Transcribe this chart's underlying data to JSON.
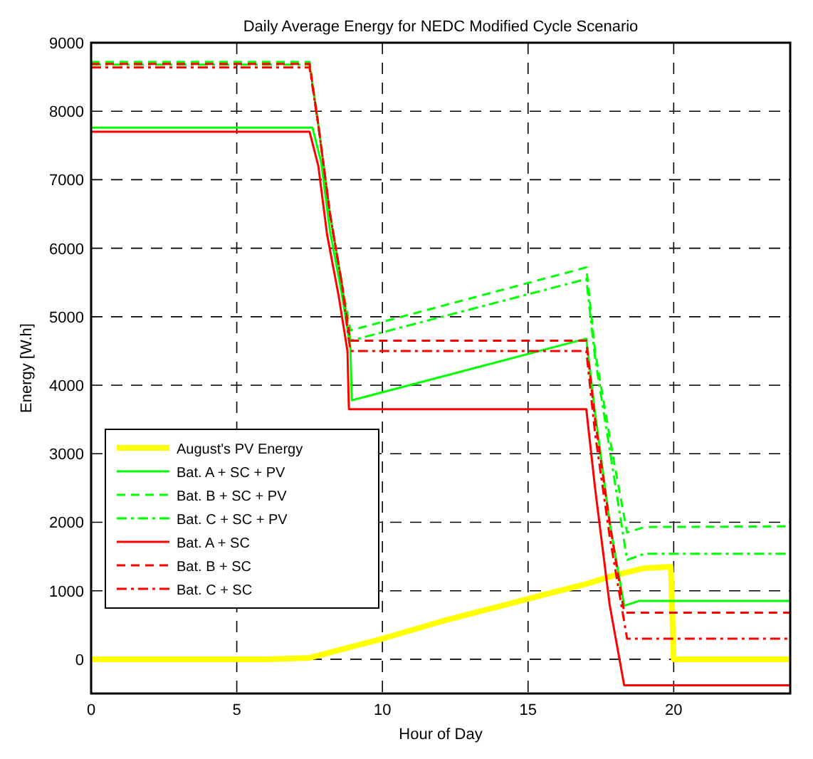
{
  "chart_data": {
    "type": "line",
    "title": "Daily Average Energy for NEDC Modified Cycle Scenario",
    "xlabel": "Hour of Day",
    "ylabel": "Energy [W.h]",
    "xlim": [
      0,
      24
    ],
    "ylim": [
      -500,
      9000
    ],
    "xticks": [
      0,
      5,
      10,
      15,
      20
    ],
    "yticks": [
      0,
      1000,
      2000,
      3000,
      4000,
      5000,
      6000,
      7000,
      8000,
      9000
    ],
    "grid": true,
    "legend": "bottom left",
    "series": [
      {
        "name": "August's PV Energy",
        "color": "#ffff00",
        "line_style": "solid",
        "x": [
          0,
          6,
          7.5,
          10,
          12,
          15,
          17,
          18,
          19,
          19.9,
          20,
          24
        ],
        "values": [
          0,
          0,
          20,
          300,
          550,
          880,
          1100,
          1230,
          1330,
          1350,
          0,
          0
        ]
      },
      {
        "name": "Bat. A + SC + PV",
        "color": "#00ff00",
        "line_style": "solid",
        "x": [
          0,
          7.6,
          7.9,
          8.2,
          8.6,
          8.9,
          8.95,
          17,
          17.3,
          17.8,
          18.3,
          18.8,
          24
        ],
        "values": [
          7760,
          7760,
          7250,
          6250,
          5350,
          4550,
          3780,
          4680,
          3600,
          2000,
          780,
          850,
          850
        ]
      },
      {
        "name": "Bat. B + SC + PV",
        "color": "#00ff00",
        "line_style": "dashed",
        "x": [
          0,
          7.5,
          7.8,
          8.2,
          8.6,
          8.9,
          17,
          17.3,
          17.9,
          18.4,
          19,
          24
        ],
        "values": [
          8720,
          8720,
          7800,
          6500,
          5500,
          4800,
          5720,
          4500,
          3000,
          1850,
          1930,
          1940
        ]
      },
      {
        "name": "Bat. C + SC + PV",
        "color": "#00ff00",
        "line_style": "dashed-dot",
        "x": [
          0,
          7.5,
          7.8,
          8.2,
          8.6,
          8.9,
          17,
          17.3,
          17.9,
          18.4,
          19,
          24
        ],
        "values": [
          8680,
          8680,
          7800,
          6500,
          5500,
          4650,
          5550,
          4400,
          2800,
          1450,
          1540,
          1540
        ]
      },
      {
        "name": "Bat. A + SC",
        "color": "#ff0000",
        "line_style": "solid",
        "x": [
          0,
          7.5,
          7.8,
          8.1,
          8.5,
          8.8,
          8.85,
          17,
          17.3,
          17.8,
          18.3,
          24
        ],
        "values": [
          7700,
          7700,
          7200,
          6200,
          5300,
          4500,
          3650,
          3650,
          2500,
          800,
          -380,
          -380
        ]
      },
      {
        "name": "Bat. B + SC",
        "color": "#ff0000",
        "line_style": "dashed",
        "x": [
          0,
          7.5,
          7.8,
          8.2,
          8.6,
          8.9,
          17,
          17.3,
          17.8,
          18.3,
          24
        ],
        "values": [
          8690,
          8690,
          7800,
          6500,
          5500,
          4650,
          4650,
          3500,
          2000,
          680,
          680
        ]
      },
      {
        "name": "Bat. C + SC",
        "color": "#ff0000",
        "line_style": "dashed-dot",
        "x": [
          0,
          7.5,
          7.8,
          8.2,
          8.6,
          8.9,
          17,
          17.3,
          17.8,
          18.4,
          24
        ],
        "values": [
          8640,
          8640,
          7800,
          6500,
          5500,
          4500,
          4500,
          3300,
          1800,
          300,
          300
        ]
      }
    ]
  }
}
